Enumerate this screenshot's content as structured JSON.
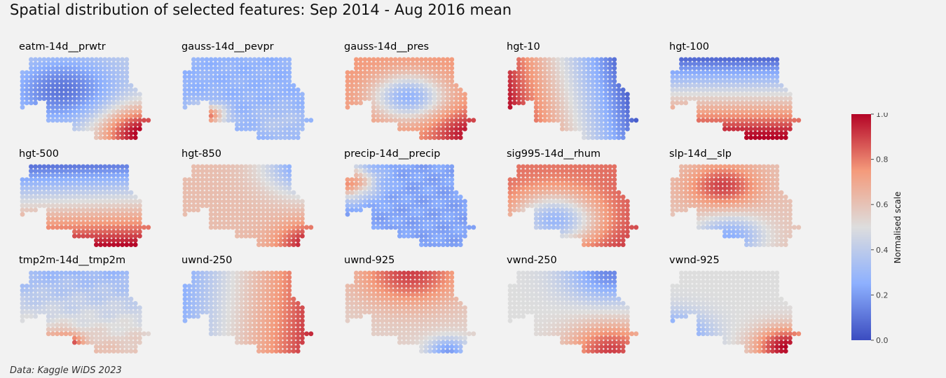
{
  "title": "Spatial distribution of selected features: Sep 2014 - Aug 2016 mean",
  "footnote": "Data: Kaggle WiDS 2023",
  "colorbar": {
    "label": "Normalised scale",
    "ticks": [
      "0.0",
      "0.2",
      "0.4",
      "0.6",
      "0.8",
      "1.0"
    ],
    "cmap": "coolwarm",
    "colors": [
      "#3b4cc0",
      "#8db0fe",
      "#dddddd",
      "#f49a7b",
      "#b40426"
    ]
  },
  "chart_data": {
    "type": "heatmap",
    "title": "Spatial distribution of selected features: Sep 2014 - Aug 2016 mean",
    "value_range": [
      0,
      1
    ],
    "colorbar_label": "Normalised scale",
    "panels": [
      {
        "name": "eatm-14d__prwtr",
        "pattern": "low values across north-west and centre, high values in south-east corner"
      },
      {
        "name": "gauss-14d__pevpr",
        "pattern": "mostly low values, high patch in south-west"
      },
      {
        "name": "gauss-14d__pres",
        "pattern": "high values around the edges, low ring in centre"
      },
      {
        "name": "hgt-10",
        "pattern": "high in far west, decreasing toward east"
      },
      {
        "name": "hgt-100",
        "pattern": "low in north, high in south"
      },
      {
        "name": "hgt-500",
        "pattern": "low in north, high in south"
      },
      {
        "name": "hgt-850",
        "pattern": "moderate in west, high in south-east, low in north-east"
      },
      {
        "name": "precip-14d__precip",
        "pattern": "mostly low values, higher in far west"
      },
      {
        "name": "sig995-14d__rhum",
        "pattern": "high around edges, low in south-central area"
      },
      {
        "name": "slp-14d__slp",
        "pattern": "high in north-central band, low in south"
      },
      {
        "name": "tmp2m-14d__tmp2m",
        "pattern": "low in north, high in south-west and south-east"
      },
      {
        "name": "uwnd-250",
        "pattern": "low in west, high in east"
      },
      {
        "name": "uwnd-925",
        "pattern": "high in north-central, low at southern tip"
      },
      {
        "name": "vwnd-250",
        "pattern": "low in north-east, high in south-east"
      },
      {
        "name": "vwnd-925",
        "pattern": "low in west, high in south-east"
      }
    ]
  }
}
